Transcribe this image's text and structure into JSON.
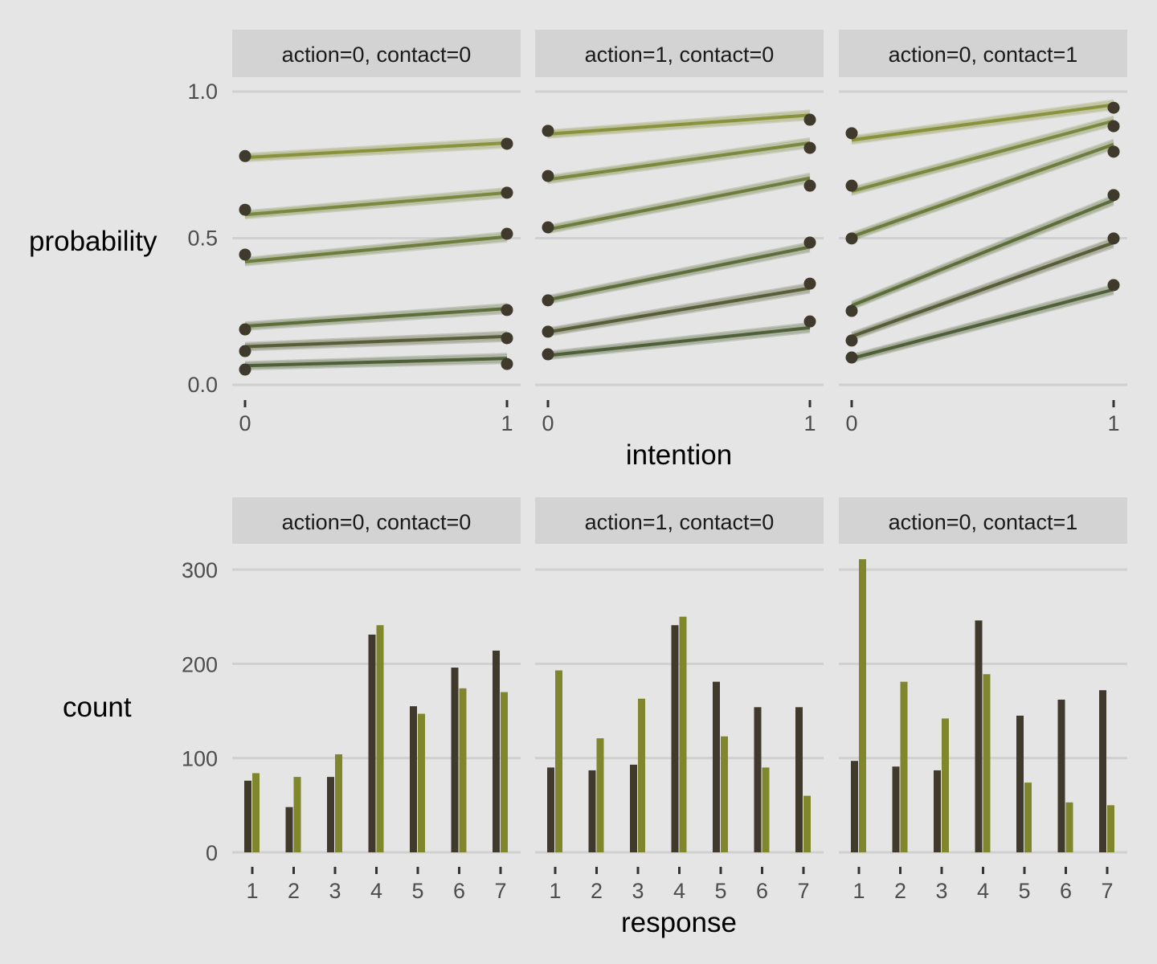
{
  "chart_data": [
    {
      "type": "line",
      "xlabel": "intention",
      "ylabel": "probability",
      "ylim": [
        0,
        1.0
      ],
      "yticks": [
        "0.0",
        "0.5",
        "1.0"
      ],
      "xticks": [
        "0",
        "1"
      ],
      "grid": true,
      "colors": {
        "points": "#403a2c",
        "lines": [
          "#7f8a2a",
          "#6f7f2e",
          "#5f722c",
          "#4f6128",
          "#4a4f26",
          "#3f5226"
        ]
      },
      "panels": [
        {
          "label": "action=0, contact=0",
          "points": [
            [
              0.78,
              0.822
            ],
            [
              0.597,
              0.655
            ],
            [
              0.444,
              0.515
            ],
            [
              0.189,
              0.255
            ],
            [
              0.115,
              0.159
            ],
            [
              0.052,
              0.071
            ]
          ],
          "fits": [
            [
              0.775,
              0.825
            ],
            [
              0.58,
              0.655
            ],
            [
              0.42,
              0.505
            ],
            [
              0.2,
              0.26
            ],
            [
              0.13,
              0.165
            ],
            [
              0.065,
              0.09
            ]
          ]
        },
        {
          "label": "action=1, contact=0",
          "points": [
            [
              0.866,
              0.904
            ],
            [
              0.712,
              0.808
            ],
            [
              0.537,
              0.679
            ],
            [
              0.288,
              0.485
            ],
            [
              0.181,
              0.345
            ],
            [
              0.104,
              0.216
            ]
          ],
          "fits": [
            [
              0.855,
              0.92
            ],
            [
              0.7,
              0.825
            ],
            [
              0.53,
              0.705
            ],
            [
              0.29,
              0.47
            ],
            [
              0.18,
              0.33
            ],
            [
              0.1,
              0.195
            ]
          ]
        },
        {
          "label": "action=0, contact=1",
          "points": [
            [
              0.858,
              0.945
            ],
            [
              0.679,
              0.882
            ],
            [
              0.499,
              0.795
            ],
            [
              0.252,
              0.647
            ],
            [
              0.151,
              0.499
            ],
            [
              0.093,
              0.34
            ]
          ],
          "fits": [
            [
              0.835,
              0.955
            ],
            [
              0.66,
              0.9
            ],
            [
              0.505,
              0.82
            ],
            [
              0.27,
              0.63
            ],
            [
              0.165,
              0.485
            ],
            [
              0.09,
              0.325
            ]
          ]
        }
      ]
    },
    {
      "type": "bar",
      "xlabel": "response",
      "ylabel": "count",
      "ylim": [
        0,
        320
      ],
      "yticks": [
        "0",
        "100",
        "200",
        "300"
      ],
      "categories": [
        "1",
        "2",
        "3",
        "4",
        "5",
        "6",
        "7"
      ],
      "grid": true,
      "colors": {
        "dark": "#403a2c",
        "olive": "#80862c"
      },
      "panels": [
        {
          "label": "action=0, contact=0",
          "dark": [
            76,
            48,
            80,
            231,
            155,
            196,
            214
          ],
          "olive": [
            84,
            80,
            104,
            241,
            147,
            174,
            170
          ]
        },
        {
          "label": "action=1, contact=0",
          "dark": [
            90,
            87,
            93,
            241,
            181,
            154,
            154
          ],
          "olive": [
            193,
            121,
            163,
            250,
            123,
            90,
            60
          ]
        },
        {
          "label": "action=0, contact=1",
          "dark": [
            97,
            91,
            87,
            246,
            145,
            162,
            172
          ],
          "olive": [
            311,
            181,
            142,
            189,
            74,
            53,
            50
          ]
        }
      ]
    }
  ]
}
